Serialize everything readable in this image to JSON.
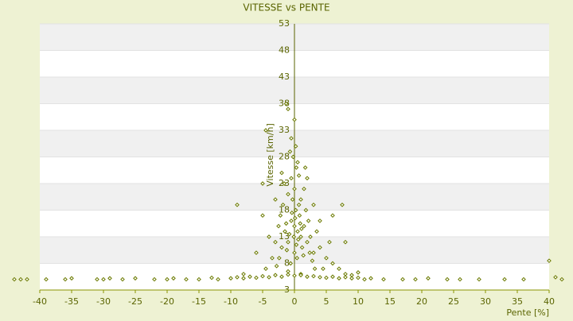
{
  "chart_data": {
    "type": "scatter",
    "title": "VITESSE vs PENTE",
    "x_label": "Pente [%]",
    "y_label": "Vitesse [km/h]",
    "xlim": [
      -40,
      40
    ],
    "xticks": [
      -40,
      -35,
      -30,
      -25,
      -20,
      -15,
      -10,
      -5,
      0,
      5,
      10,
      15,
      20,
      25,
      30,
      35,
      40
    ],
    "ylim": [
      3,
      53
    ],
    "yticks": [
      3,
      8,
      13,
      18,
      23,
      28,
      33,
      38,
      43,
      48,
      53
    ],
    "series": [
      {
        "name": "Vitesse",
        "color": "#6b7a00",
        "x": [
          0,
          0.5,
          -0.5,
          1,
          -1,
          0.2,
          -0.3,
          0.8,
          1.5,
          -1.5,
          2,
          -2,
          0,
          0.4,
          -0.6,
          1.2,
          2.5,
          -2.5,
          3,
          -3,
          0,
          -0.5,
          0.3,
          -0.2,
          1,
          -1,
          1.8,
          -1.8,
          2.2,
          -2.2,
          3.5,
          -3.5,
          4,
          -4,
          0.6,
          -0.8,
          1.4,
          -1.2,
          0.1,
          0.9,
          -0.4,
          2.8,
          -2.8,
          3.2,
          -1,
          1,
          5,
          -5,
          5.5,
          6,
          7,
          8,
          -6,
          2,
          -2,
          0.5,
          -0.7,
          0.2,
          1.5,
          -1.6,
          0.7,
          -0.1,
          0.3,
          1.1,
          -1.3,
          2.4,
          -2.4,
          4.5,
          -4.5,
          9,
          10,
          -8,
          3,
          -3,
          0,
          -1,
          -1.3,
          -4.5,
          -9,
          7.5,
          -5,
          6,
          4,
          8,
          40,
          -0.5,
          0.7,
          1.7,
          -44,
          -43,
          -42,
          -39,
          -36,
          -35,
          -31,
          -30,
          -29,
          -27,
          -25,
          -22,
          -20,
          -19,
          -17,
          -15,
          -13,
          -12,
          -10,
          -9,
          -8,
          -7,
          -6,
          -5,
          -4,
          -3,
          -2,
          -1,
          0,
          1,
          2,
          3,
          4,
          5,
          6,
          7,
          8,
          9,
          10,
          11,
          12,
          14,
          17,
          19,
          21,
          24,
          26,
          29,
          33,
          36,
          41,
          42
        ],
        "y": [
          15,
          14,
          16,
          13,
          12,
          18,
          20,
          17,
          15,
          14,
          12,
          11,
          10,
          9,
          8,
          11,
          13,
          15,
          10,
          12,
          22,
          24,
          26,
          28,
          20,
          21,
          18,
          19,
          16,
          17,
          14,
          9,
          11,
          13,
          12.5,
          13.5,
          9.5,
          10.5,
          16.5,
          15.5,
          17.5,
          8.5,
          7.5,
          7,
          6.5,
          6,
          9,
          17,
          12,
          8,
          7,
          6,
          10,
          24,
          25,
          27,
          29,
          30,
          22,
          23,
          19,
          13,
          11.5,
          14.5,
          15.5,
          10,
          9,
          7,
          7,
          5.8,
          6.3,
          6,
          19,
          20,
          35,
          37,
          38,
          33,
          19,
          19,
          23,
          17,
          16,
          12,
          8.5,
          31.5,
          24.5,
          26,
          5,
          5,
          5,
          5,
          5,
          5.2,
          5,
          5,
          5.2,
          5,
          5.2,
          5,
          5,
          5.2,
          5,
          5,
          5.3,
          5,
          5.2,
          5.4,
          5.2,
          5.5,
          5.3,
          5.6,
          5.4,
          5.8,
          5.5,
          5.9,
          5.7,
          5.8,
          5.5,
          5.6,
          5.4,
          5.3,
          5.5,
          5.2,
          5.4,
          5.2,
          5.3,
          5,
          5.2,
          5,
          5,
          5,
          5.2,
          5,
          5,
          5,
          5,
          5,
          5.4,
          5
        ]
      }
    ],
    "grid": true
  }
}
